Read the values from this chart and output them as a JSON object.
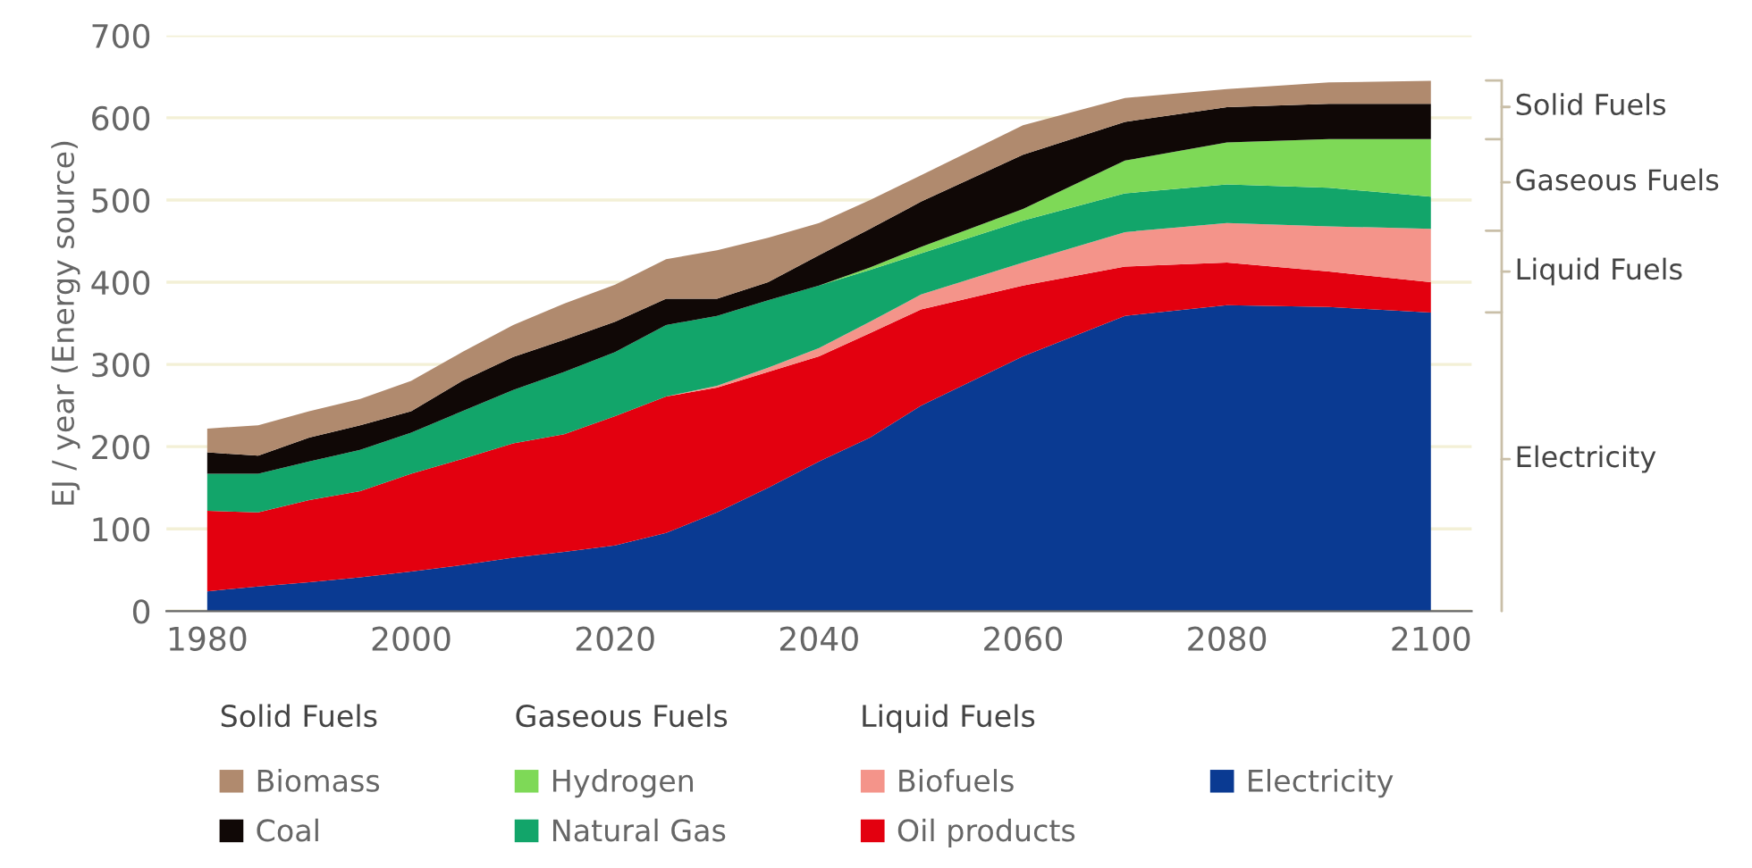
{
  "chart_data": {
    "type": "area",
    "stacked": true,
    "ylabel": "EJ / year (Energy source)",
    "x": [
      1980,
      1985,
      1990,
      1995,
      2000,
      2005,
      2010,
      2015,
      2020,
      2025,
      2030,
      2035,
      2040,
      2045,
      2050,
      2060,
      2070,
      2080,
      2090,
      2100
    ],
    "series": [
      {
        "name": "Electricity",
        "color": "#0a3a92",
        "values": [
          24,
          30,
          35,
          41,
          48,
          56,
          65,
          72,
          80,
          95,
          120,
          150,
          182,
          211,
          250,
          310,
          359,
          372,
          370,
          363
        ]
      },
      {
        "name": "Oil products",
        "color": "#e3000f",
        "values": [
          98,
          90,
          100,
          105,
          119,
          129,
          139,
          143,
          157,
          166,
          152,
          141,
          128,
          127,
          117,
          86,
          60,
          52,
          43,
          37
        ]
      },
      {
        "name": "Biofuels",
        "color": "#f4948a",
        "values": [
          0,
          0,
          0,
          0,
          0,
          0,
          0,
          0,
          0,
          0,
          2,
          5,
          10,
          14,
          18,
          28,
          42,
          48,
          55,
          65
        ]
      },
      {
        "name": "Natural Gas",
        "color": "#12a56a",
        "values": [
          45,
          47,
          47,
          50,
          50,
          58,
          65,
          76,
          78,
          87,
          85,
          82,
          76,
          63,
          50,
          51,
          47,
          47,
          47,
          39
        ]
      },
      {
        "name": "Hydrogen",
        "color": "#7ed957",
        "values": [
          0,
          0,
          0,
          0,
          0,
          0,
          0,
          0,
          0,
          0,
          0,
          0,
          0,
          3,
          8,
          14,
          40,
          51,
          59,
          70
        ]
      },
      {
        "name": "Coal",
        "color": "#100806",
        "values": [
          26,
          22,
          29,
          30,
          26,
          37,
          40,
          39,
          37,
          32,
          21,
          22,
          37,
          47,
          55,
          66,
          47,
          43,
          43,
          43
        ]
      },
      {
        "name": "Biomass",
        "color": "#b08a6e",
        "values": [
          29,
          37,
          32,
          32,
          37,
          35,
          39,
          44,
          45,
          48,
          59,
          54,
          39,
          35,
          32,
          36,
          29,
          22,
          26,
          28
        ]
      }
    ],
    "xlim": [
      1976,
      2104
    ],
    "ylim": [
      0,
      700
    ],
    "xticks": [
      1980,
      2000,
      2020,
      2040,
      2060,
      2080,
      2100
    ],
    "yticks": [
      0,
      100,
      200,
      300,
      400,
      500,
      600,
      700
    ],
    "grid": "y",
    "legend": "bottom",
    "annotations": [
      "Solid Fuels",
      "Gaseous Fuels",
      "Liquid Fuels",
      "Solid Fuels",
      "Gaseous Fuels",
      "Liquid Fuels",
      "Electricity"
    ]
  }
}
